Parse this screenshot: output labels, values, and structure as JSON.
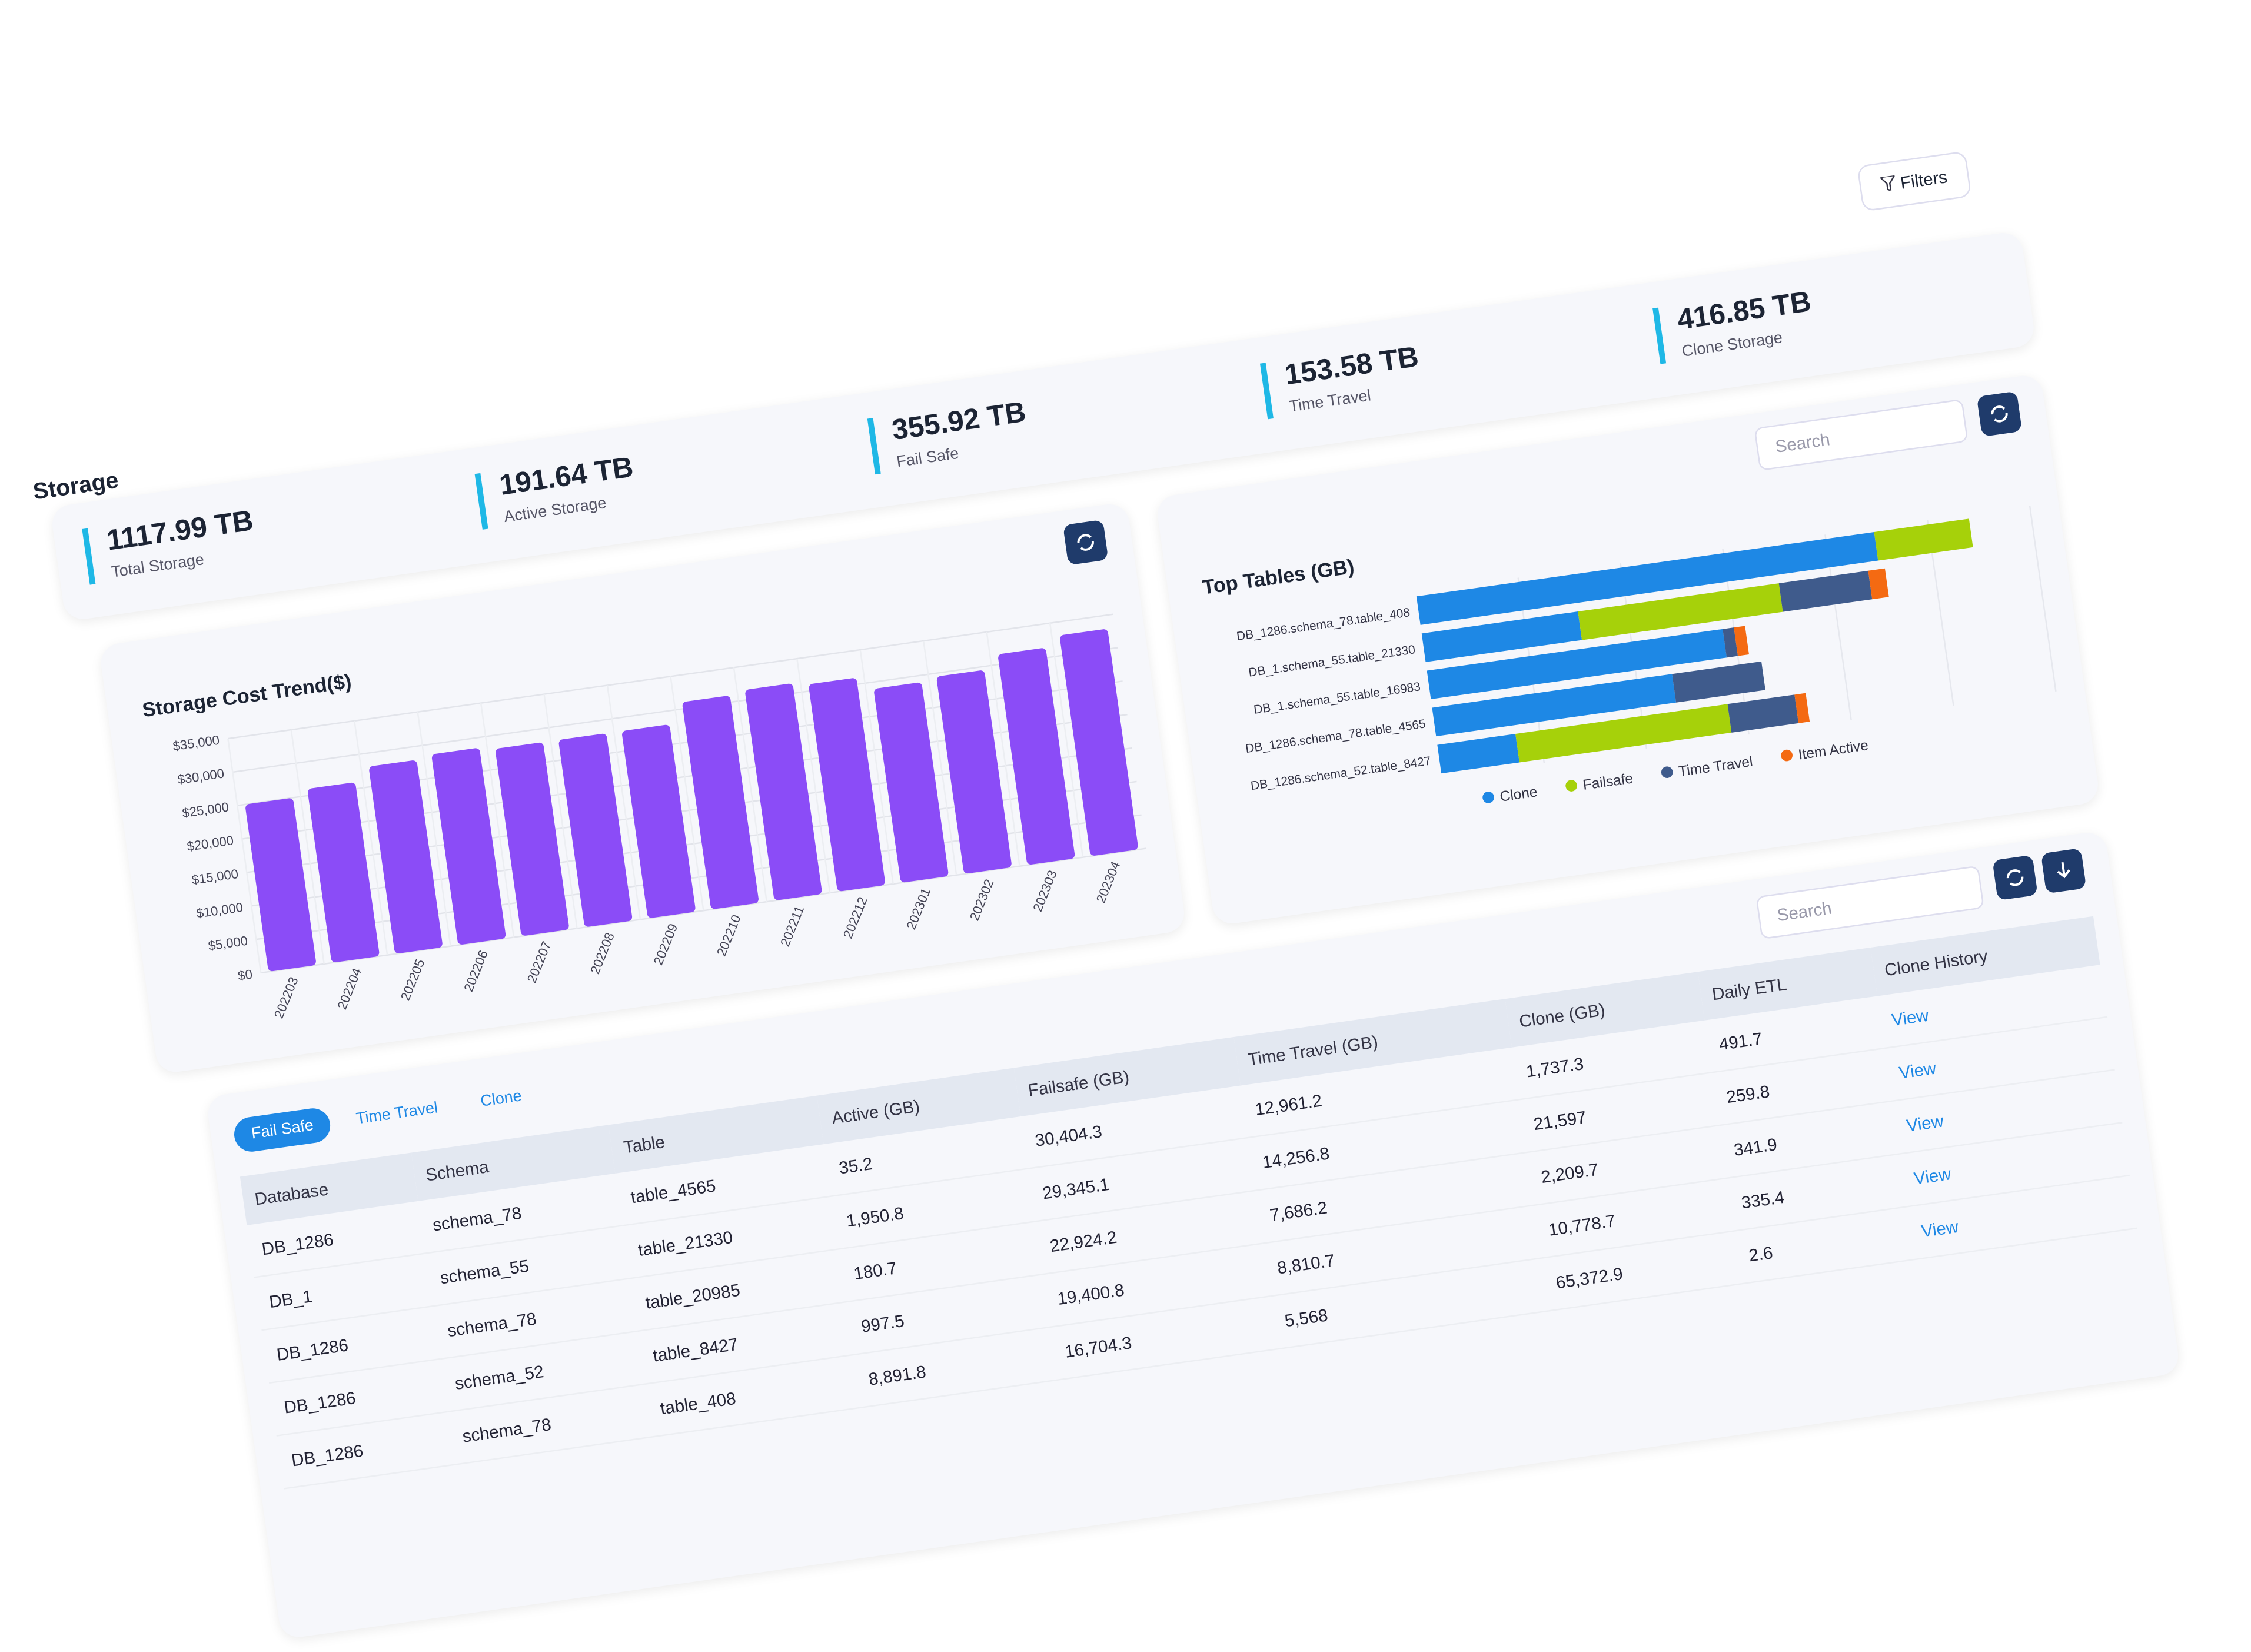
{
  "header": {
    "title": "Storage",
    "filters": "Filters"
  },
  "kpis": [
    {
      "value": "1117.99 TB",
      "label": "Total Storage"
    },
    {
      "value": "191.64 TB",
      "label": "Active Storage"
    },
    {
      "value": "355.92 TB",
      "label": "Fail Safe"
    },
    {
      "value": "153.58 TB",
      "label": "Time Travel"
    },
    {
      "value": "416.85 TB",
      "label": "Clone Storage"
    }
  ],
  "chart_data": [
    {
      "type": "bar",
      "title": "Storage Cost Trend($)",
      "color": "#8b4cf7",
      "grid": true,
      "categories": [
        "202203",
        "202204",
        "202205",
        "202206",
        "202207",
        "202208",
        "202209",
        "202210",
        "202211",
        "202212",
        "202301",
        "202302",
        "202303",
        "202304"
      ],
      "values": [
        25000,
        26000,
        28000,
        28500,
        28000,
        28000,
        28000,
        31000,
        31500,
        31000,
        29000,
        29500,
        31500,
        33000
      ],
      "ylim": [
        0,
        35000
      ],
      "yticks": [
        {
          "value": 0,
          "label": "$0"
        },
        {
          "value": 5000,
          "label": "$5,000"
        },
        {
          "value": 10000,
          "label": "$10,000"
        },
        {
          "value": 15000,
          "label": "$15,000"
        },
        {
          "value": 20000,
          "label": "$20,000"
        },
        {
          "value": 25000,
          "label": "$25,000"
        },
        {
          "value": 30000,
          "label": "$30,000"
        },
        {
          "value": 35000,
          "label": "$35,000"
        }
      ]
    },
    {
      "type": "hbar",
      "stacked": true,
      "title": "Top Tables (GB)",
      "search": "Search",
      "grid": true,
      "legend": "bottom",
      "categories": [
        "DB_1286.schema_78.table_408",
        "DB_1.schema_55.table_21330",
        "DB_1.schema_55.table_16983",
        "DB_1286.schema_78.table_4565",
        "DB_1286.schema_52.table_8427"
      ],
      "xlim": [
        0,
        110000
      ],
      "series": [
        {
          "name": "Clone",
          "color": "#1e88e5",
          "values": [
            82000,
            28000,
            53000,
            43000,
            14000
          ]
        },
        {
          "name": "Failsafe",
          "color": "#a6d10a",
          "values": [
            17000,
            36000,
            0,
            0,
            38000
          ]
        },
        {
          "name": "Time Travel",
          "color": "#3f5b8c",
          "values": [
            0,
            16000,
            2000,
            16000,
            12000
          ]
        },
        {
          "name": "Item Active",
          "color": "#f46a12",
          "values": [
            0,
            3000,
            2000,
            0,
            2000
          ]
        }
      ]
    }
  ],
  "table": {
    "tabs": [
      "Fail Safe",
      "Time Travel",
      "Clone"
    ],
    "search": "Search",
    "columns": [
      "Database",
      "Schema",
      "Table",
      "Active (GB)",
      "Failsafe (GB)",
      "Time Travel (GB)",
      "Clone (GB)",
      "Daily ETL",
      "Clone History"
    ],
    "rows": [
      [
        "DB_1286",
        "schema_78",
        "table_4565",
        "35.2",
        "30,404.3",
        "12,961.2",
        "1,737.3",
        "491.7",
        "View"
      ],
      [
        "DB_1",
        "schema_55",
        "table_21330",
        "1,950.8",
        "29,345.1",
        "14,256.8",
        "21,597",
        "259.8",
        "View"
      ],
      [
        "DB_1286",
        "schema_78",
        "table_20985",
        "180.7",
        "22,924.2",
        "7,686.2",
        "2,209.7",
        "341.9",
        "View"
      ],
      [
        "DB_1286",
        "schema_52",
        "table_8427",
        "997.5",
        "19,400.8",
        "8,810.7",
        "10,778.7",
        "335.4",
        "View"
      ],
      [
        "DB_1286",
        "schema_78",
        "table_408",
        "8,891.8",
        "16,704.3",
        "5,568",
        "65,372.9",
        "2.6",
        "View"
      ]
    ]
  }
}
